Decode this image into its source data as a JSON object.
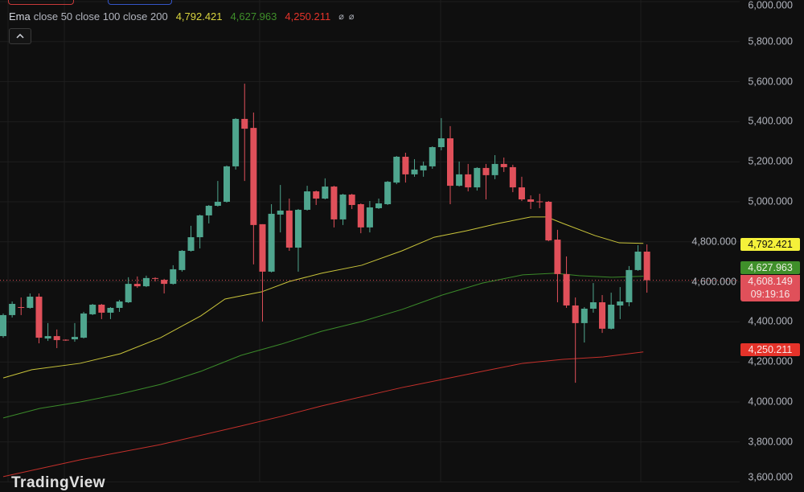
{
  "legend": {
    "indicator": "Ema",
    "params": "close 50 close 100 close 200",
    "values": [
      "4,792.421",
      "4,627.963",
      "4,250.211"
    ],
    "null_icons": [
      "⌀",
      "⌀"
    ]
  },
  "collapse_icon": "chevron-up-icon",
  "logo": "TradingView",
  "colors": {
    "background": "#0f0f0f",
    "up": "#4fa58e",
    "down": "#e0505a",
    "ema50": "#c9c43a",
    "ema100": "#3b8a2a",
    "ema200": "#c4302b",
    "tag_ema50": "#f5f13a",
    "tag_ema100": "#3f8f2a",
    "tag_last": "#e0505a",
    "tag_ema200": "#e5332a"
  },
  "price_tags": {
    "ema50": "4,792.421",
    "ema100": "4,627.963",
    "last_price": "4,608.149",
    "countdown": "09:19:16",
    "ema200": "4,250.211"
  },
  "chart_data": {
    "type": "candlestick",
    "ylim": [
      3600,
      6000
    ],
    "y_ticks": [
      "6,000.000",
      "5,800.000",
      "5,600.000",
      "5,400.000",
      "5,200.000",
      "5,000.000",
      "4,800.000",
      "4,600.000",
      "4,400.000",
      "4,200.000",
      "4,000.000",
      "3,800.000",
      "3,600.000"
    ],
    "y_tick_values": [
      6000,
      5800,
      5600,
      5400,
      5200,
      5000,
      4800,
      4600,
      4400,
      4200,
      4000,
      3800,
      3600
    ],
    "grid": true,
    "last_price": 4608.149,
    "candles": [
      [
        4329,
        4442,
        4321,
        4434
      ],
      [
        4434,
        4502,
        4422,
        4490
      ],
      [
        4474,
        4522,
        4434,
        4470
      ],
      [
        4470,
        4542,
        4466,
        4526
      ],
      [
        4526,
        4542,
        4293,
        4321
      ],
      [
        4317,
        4394,
        4305,
        4329
      ],
      [
        4329,
        4362,
        4269,
        4309
      ],
      [
        4311,
        4313,
        4305,
        4309
      ],
      [
        4313,
        4394,
        4301,
        4325
      ],
      [
        4321,
        4450,
        4317,
        4442
      ],
      [
        4438,
        4490,
        4434,
        4486
      ],
      [
        4486,
        4490,
        4414,
        4446
      ],
      [
        4446,
        4474,
        4414,
        4470
      ],
      [
        4470,
        4510,
        4450,
        4502
      ],
      [
        4498,
        4623,
        4494,
        4590
      ],
      [
        4590,
        4627,
        4570,
        4578
      ],
      [
        4578,
        4631,
        4574,
        4619
      ],
      [
        4619,
        4623,
        4602,
        4615
      ],
      [
        4610,
        4615,
        4542,
        4590
      ],
      [
        4590,
        4683,
        4586,
        4663
      ],
      [
        4659,
        4759,
        4651,
        4755
      ],
      [
        4755,
        4880,
        4751,
        4823
      ],
      [
        4823,
        4936,
        4767,
        4932
      ],
      [
        4932,
        4984,
        4892,
        4980
      ],
      [
        4980,
        5104,
        4976,
        5000
      ],
      [
        5000,
        5181,
        4996,
        5177
      ],
      [
        5177,
        5418,
        5161,
        5414
      ],
      [
        5414,
        5590,
        5104,
        5365
      ],
      [
        5369,
        5446,
        4687,
        4884
      ],
      [
        4888,
        4888,
        4402,
        4651
      ],
      [
        4651,
        4988,
        4647,
        4940
      ],
      [
        4936,
        5084,
        4847,
        4956
      ],
      [
        4956,
        5016,
        4755,
        4771
      ],
      [
        4771,
        4964,
        4651,
        4960
      ],
      [
        4960,
        5080,
        4956,
        5052
      ],
      [
        5052,
        5056,
        4984,
        5016
      ],
      [
        5016,
        5117,
        5012,
        5076
      ],
      [
        5076,
        5080,
        4872,
        4912
      ],
      [
        4912,
        5040,
        4884,
        5036
      ],
      [
        5036,
        5040,
        4964,
        4984
      ],
      [
        4988,
        4992,
        4843,
        4872
      ],
      [
        4872,
        5004,
        4847,
        4972
      ],
      [
        4968,
        5016,
        4964,
        4992
      ],
      [
        4988,
        5104,
        4984,
        5100
      ],
      [
        5096,
        5229,
        5088,
        5225
      ],
      [
        5225,
        5245,
        5096,
        5137
      ],
      [
        5137,
        5213,
        5125,
        5161
      ],
      [
        5157,
        5201,
        5125,
        5181
      ],
      [
        5177,
        5277,
        5165,
        5273
      ],
      [
        5273,
        5418,
        5257,
        5317
      ],
      [
        5317,
        5378,
        4988,
        5080
      ],
      [
        5080,
        5201,
        5076,
        5137
      ],
      [
        5137,
        5189,
        5052,
        5072
      ],
      [
        5072,
        5173,
        5056,
        5169
      ],
      [
        5169,
        5189,
        5012,
        5133
      ],
      [
        5133,
        5233,
        5113,
        5189
      ],
      [
        5189,
        5221,
        5149,
        5173
      ],
      [
        5173,
        5185,
        5048,
        5072
      ],
      [
        5072,
        5125,
        5004,
        5012
      ],
      [
        5012,
        5032,
        4964,
        5000
      ],
      [
        5002,
        5040,
        4968,
        5000
      ],
      [
        5000,
        5004,
        4803,
        4807
      ],
      [
        4811,
        4860,
        4498,
        4639
      ],
      [
        4639,
        4727,
        4470,
        4482
      ],
      [
        4482,
        4522,
        4096,
        4394
      ],
      [
        4394,
        4474,
        4297,
        4466
      ],
      [
        4466,
        4594,
        4446,
        4498
      ],
      [
        4498,
        4534,
        4345,
        4366
      ],
      [
        4366,
        4546,
        4362,
        4486
      ],
      [
        4482,
        4574,
        4414,
        4502
      ],
      [
        4498,
        4679,
        4478,
        4659
      ],
      [
        4659,
        4783,
        4655,
        4751
      ],
      [
        4751,
        4787,
        4546,
        4608
      ]
    ],
    "candle_fields": [
      "open",
      "high",
      "low",
      "close"
    ],
    "series": [
      {
        "name": "Ema close 50",
        "points": [
          [
            0,
            4120
          ],
          [
            3.2,
            4161
          ],
          [
            8.6,
            4193
          ],
          [
            13.1,
            4241
          ],
          [
            17.6,
            4321
          ],
          [
            22.1,
            4430
          ],
          [
            24.8,
            4514
          ],
          [
            26.6,
            4530
          ],
          [
            28.9,
            4550
          ],
          [
            32,
            4602
          ],
          [
            35.6,
            4643
          ],
          [
            40.1,
            4683
          ],
          [
            44.6,
            4755
          ],
          [
            48.2,
            4823
          ],
          [
            51.8,
            4855
          ],
          [
            55.4,
            4892
          ],
          [
            59,
            4924
          ],
          [
            60.8,
            4924
          ],
          [
            62.6,
            4892
          ],
          [
            66.2,
            4831
          ],
          [
            68.9,
            4795
          ],
          [
            71.6,
            4792
          ]
        ]
      },
      {
        "name": "Ema close 100",
        "points": [
          [
            0,
            3920
          ],
          [
            4.1,
            3968
          ],
          [
            8.6,
            4000
          ],
          [
            13.1,
            4040
          ],
          [
            17.6,
            4088
          ],
          [
            22.1,
            4153
          ],
          [
            26.6,
            4233
          ],
          [
            31.1,
            4289
          ],
          [
            35.6,
            4353
          ],
          [
            40.1,
            4402
          ],
          [
            44.6,
            4462
          ],
          [
            49.1,
            4534
          ],
          [
            53.6,
            4594
          ],
          [
            58.1,
            4635
          ],
          [
            61.7,
            4643
          ],
          [
            64.4,
            4631
          ],
          [
            68,
            4623
          ],
          [
            71.6,
            4628
          ]
        ]
      },
      {
        "name": "Ema close 200",
        "points": [
          [
            0,
            3627
          ],
          [
            8.6,
            3711
          ],
          [
            17.6,
            3787
          ],
          [
            26.6,
            3880
          ],
          [
            31.1,
            3928
          ],
          [
            35.6,
            3980
          ],
          [
            44.6,
            4072
          ],
          [
            53.6,
            4153
          ],
          [
            58.1,
            4193
          ],
          [
            62.6,
            4213
          ],
          [
            67.1,
            4225
          ],
          [
            71.6,
            4250
          ]
        ]
      }
    ]
  }
}
